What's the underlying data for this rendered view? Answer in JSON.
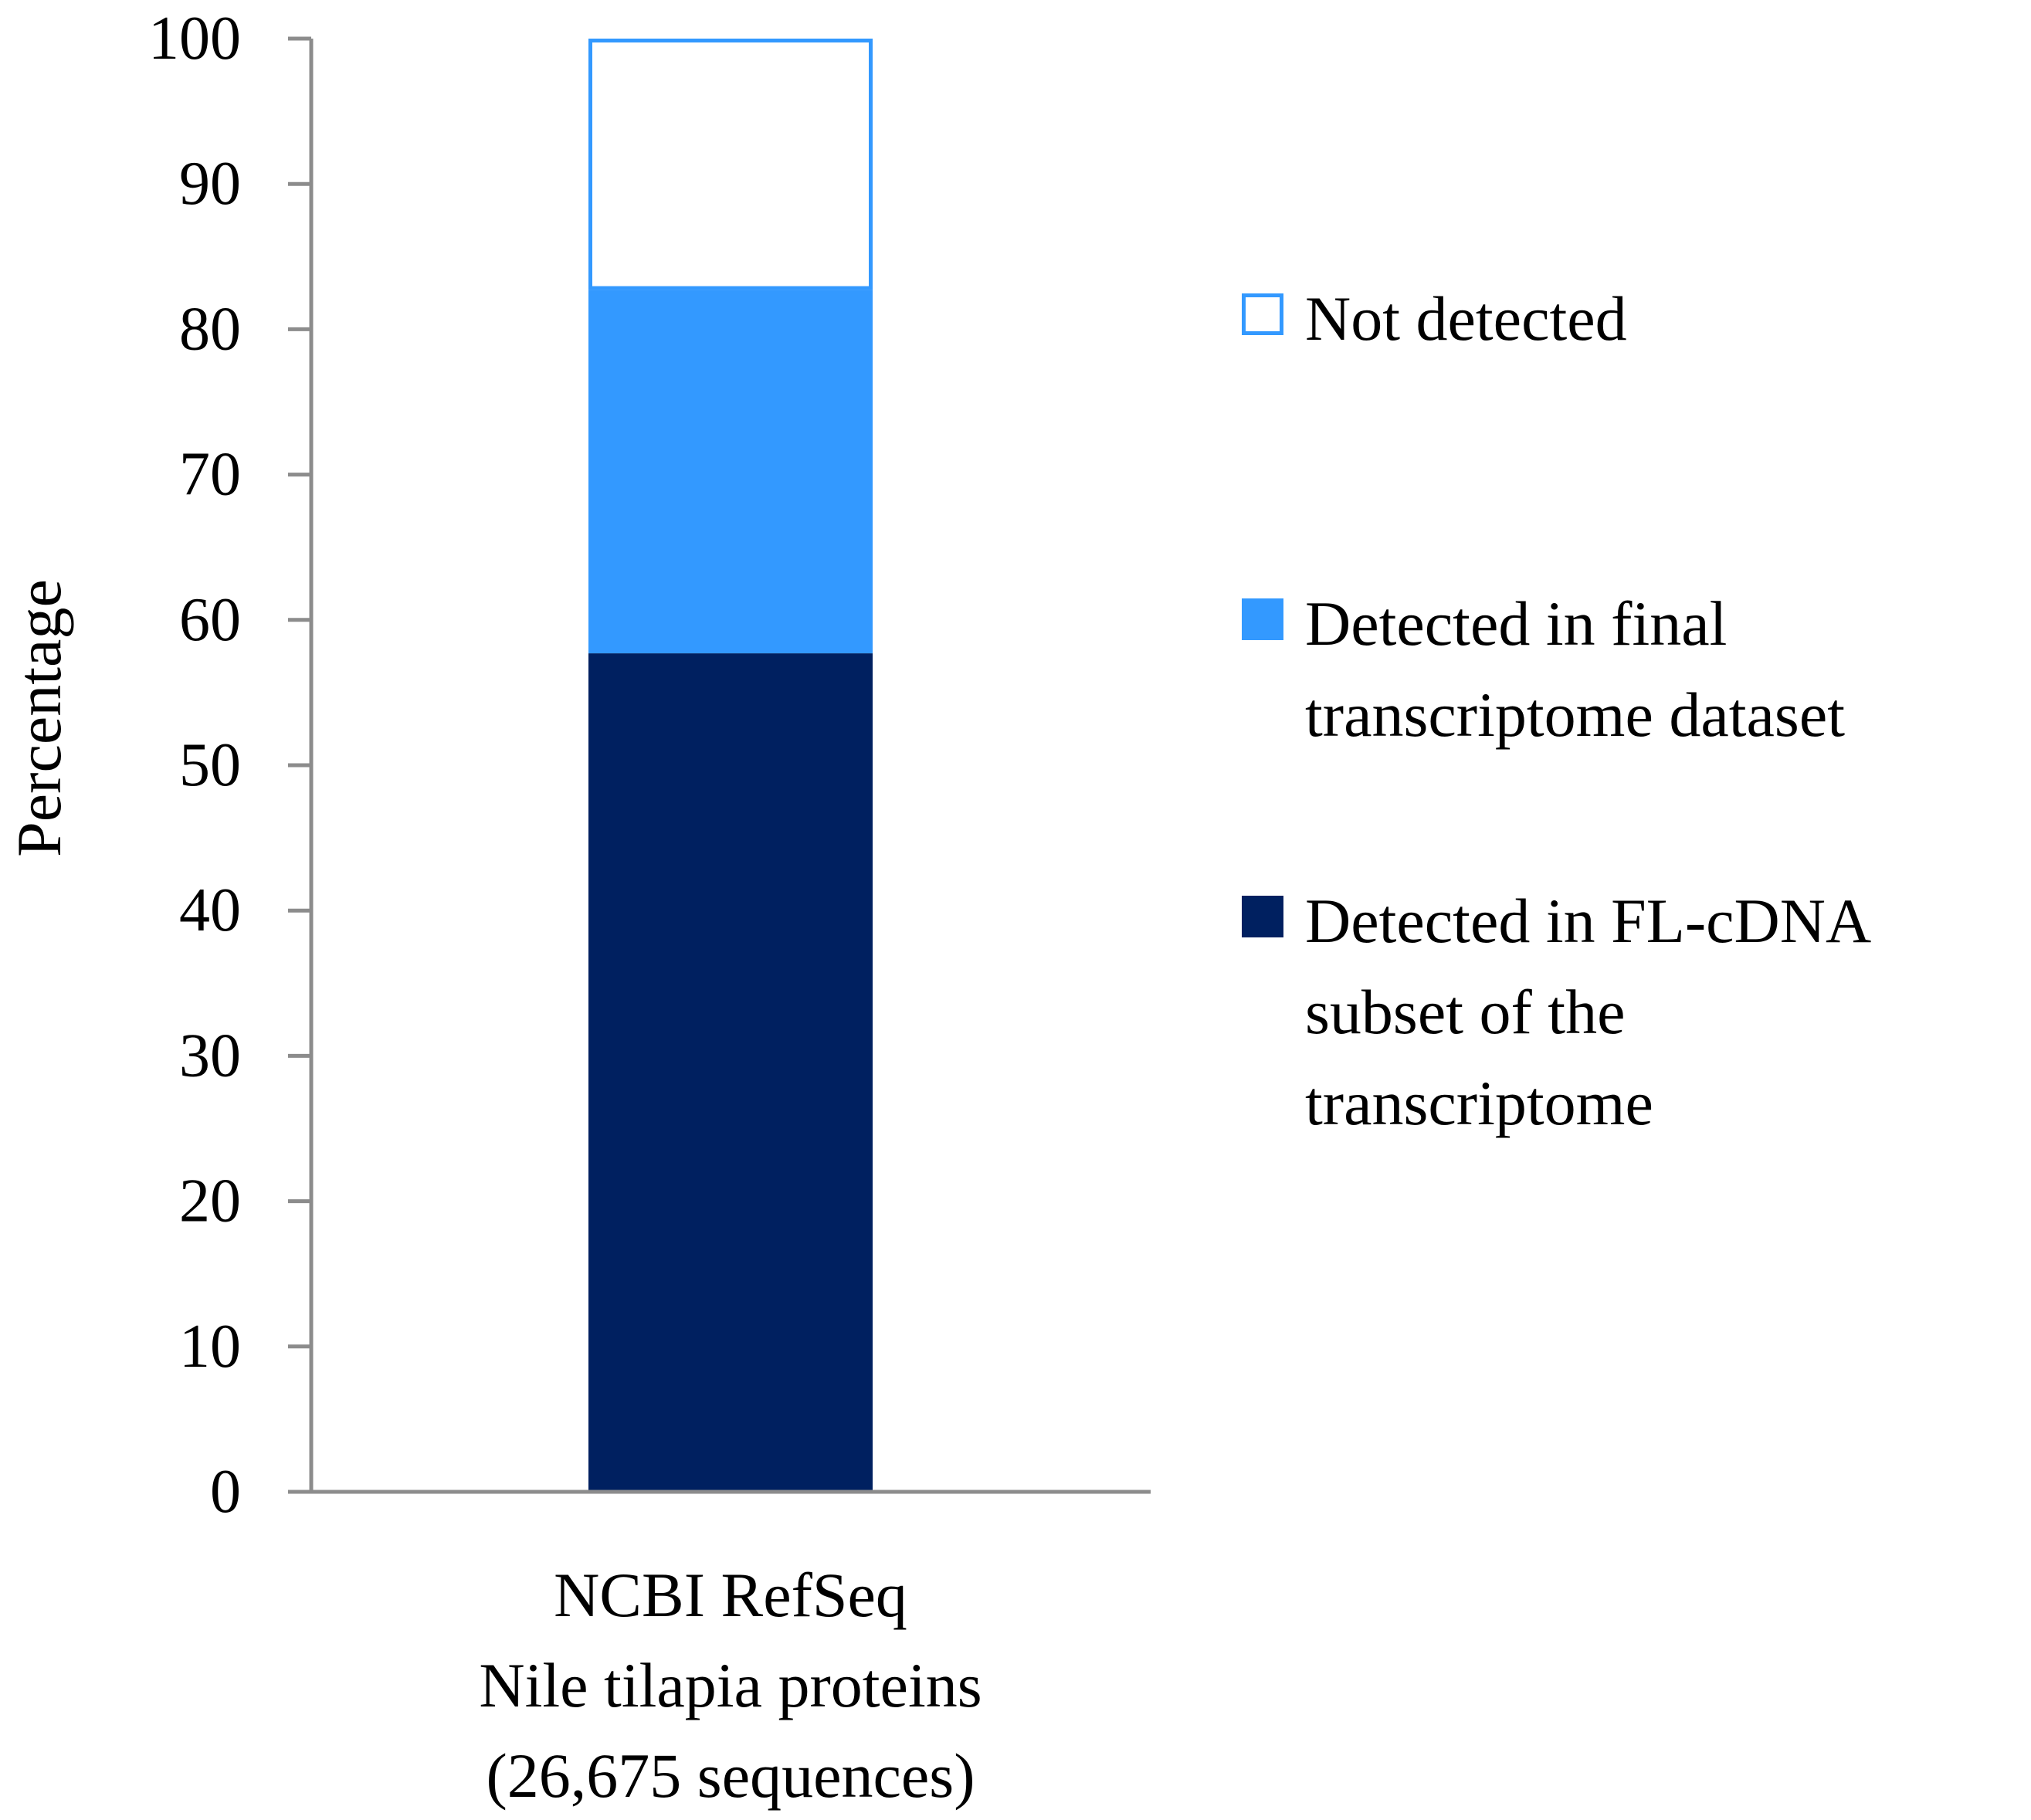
{
  "chart_data": {
    "type": "bar",
    "stacked": true,
    "categories": [
      [
        "NCBI RefSeq",
        "Nile tilapia proteins",
        "(26,675 sequences)"
      ]
    ],
    "ylabel": "Percentage",
    "ylim": [
      0,
      100
    ],
    "yticks": [
      "0",
      "10",
      "20",
      "30",
      "40",
      "50",
      "60",
      "70",
      "80",
      "90",
      "100"
    ],
    "grid": false,
    "legend_position": "right",
    "series": [
      {
        "name": [
          "Detected in FL-cDNA",
          "subset of the",
          "transcriptome"
        ],
        "values": [
          57.7
        ],
        "color": "#002060",
        "fill": true
      },
      {
        "name": [
          "Detected in final",
          "transcriptome dataset"
        ],
        "values": [
          25.0
        ],
        "color": "#3399ff",
        "fill": true
      },
      {
        "name": [
          "Not detected"
        ],
        "values": [
          17.3
        ],
        "color": "#3399ff",
        "fill": false
      }
    ]
  },
  "colors": {
    "axis": "#8c8c8c"
  }
}
